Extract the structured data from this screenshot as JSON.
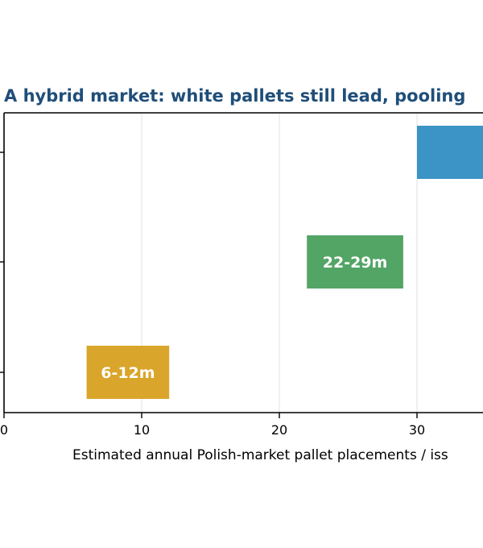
{
  "chart_data": {
    "type": "bar",
    "orientation": "horizontal-range",
    "title": "A hybrid market: white pallets still lead, pooling",
    "xlabel": "Estimated annual Polish-market pallet placements / iss",
    "ylabel": "",
    "xlim": [
      0,
      35
    ],
    "x_ticks": [
      0,
      10,
      20,
      30
    ],
    "x_tick_labels": [
      "0",
      "10",
      "20",
      "30"
    ],
    "grid": "x",
    "bars": [
      {
        "start": 30,
        "end": 35,
        "label": "",
        "color": "#3b94c5"
      },
      {
        "start": 22,
        "end": 29,
        "label": "22-29m",
        "color": "#53a566"
      },
      {
        "start": 6,
        "end": 12,
        "label": "6-12m",
        "color": "#d9a52a"
      }
    ],
    "title_color": "#1f4e79"
  }
}
